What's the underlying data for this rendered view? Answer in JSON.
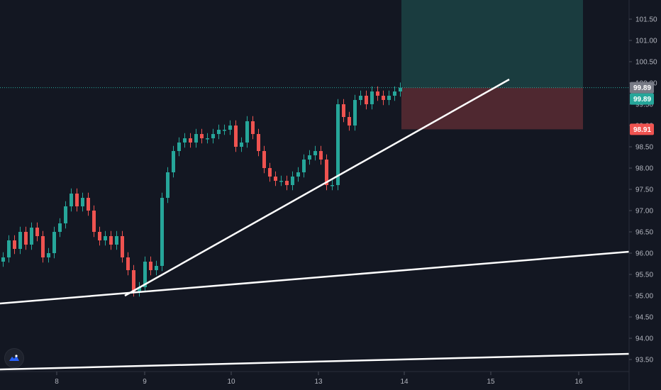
{
  "chart_data": {
    "type": "candlestick",
    "xlabel": "",
    "ylabel": "",
    "x_tick_labels": [
      "8",
      "9",
      "10",
      "13",
      "14",
      "15",
      "16"
    ],
    "y_ticks": [
      "93.50",
      "94.00",
      "94.50",
      "95.00",
      "95.50",
      "96.00",
      "96.50",
      "97.00",
      "97.50",
      "98.00",
      "98.50",
      "99.00",
      "99.50",
      "100.00",
      "100.50",
      "101.00",
      "101.50"
    ],
    "ylim": [
      93.3,
      101.9
    ],
    "grid": false,
    "price_labels": {
      "last_price": "99.89",
      "current_price": "99.89",
      "stop_level": "98.91"
    },
    "position_box": {
      "entry": 99.89,
      "target": 101.9,
      "stop": 98.91
    },
    "trendlines": [
      {
        "name": "",
        "from_price": 95.05,
        "to_price": 99.89
      },
      {
        "name": "",
        "from_price": 94.8,
        "to_price": 96.03
      },
      {
        "name": "",
        "from_price": 93.35,
        "to_price": 93.62
      }
    ],
    "candles_close": [
      95.9,
      96.3,
      96.1,
      96.5,
      96.2,
      96.6,
      96.4,
      95.9,
      96.0,
      96.5,
      96.7,
      97.1,
      97.4,
      97.1,
      97.3,
      97.0,
      96.5,
      96.3,
      96.4,
      96.2,
      96.4,
      95.9,
      95.6,
      95.1,
      95.2,
      95.8,
      95.6,
      95.7,
      97.3,
      97.9,
      98.4,
      98.6,
      98.7,
      98.6,
      98.8,
      98.7,
      98.7,
      98.8,
      98.9,
      98.9,
      99.0,
      98.5,
      98.6,
      99.1,
      98.8,
      98.4,
      98.0,
      97.8,
      97.7,
      97.7,
      97.6,
      97.8,
      97.9,
      98.2,
      98.3,
      98.4,
      98.2,
      97.6,
      97.6,
      99.5,
      99.2,
      99.0,
      99.6,
      99.7,
      99.5,
      99.8,
      99.7,
      99.6,
      99.7,
      99.8,
      99.89
    ],
    "colors": {
      "background": "#131722",
      "up": "#26a69a",
      "down": "#ef5350",
      "target_zone": "#1d4a4a",
      "stop_zone": "#5b2c32",
      "trendline": "#ffffff",
      "entry_line": "#26a69a"
    }
  },
  "ui": {
    "logo_icon": "tradingview-logo-icon"
  }
}
